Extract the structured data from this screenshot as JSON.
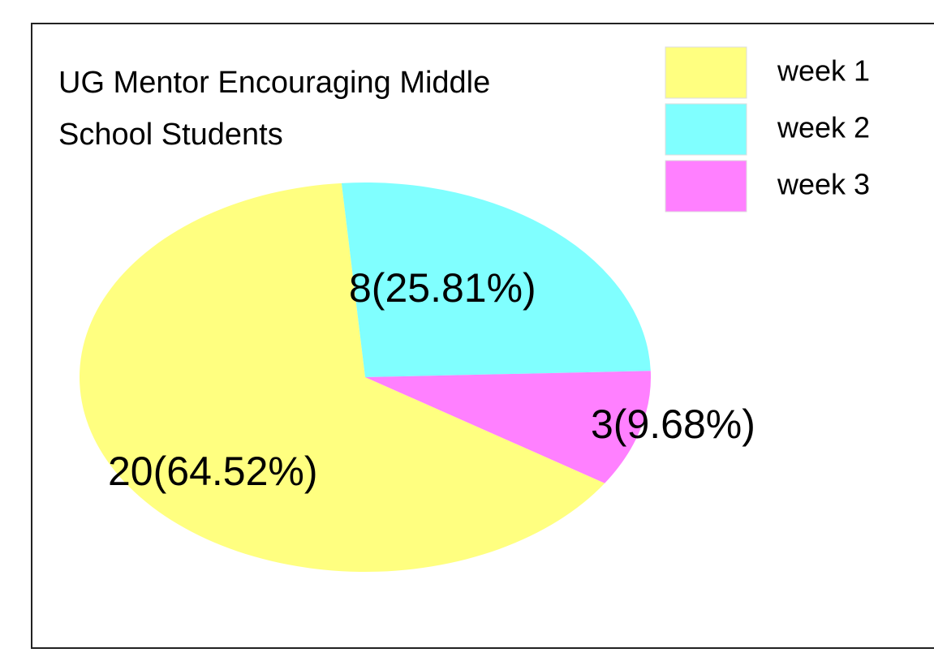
{
  "chart_data": {
    "type": "pie",
    "title": "UG Mentor Encouraging Middle\nSchool Students",
    "categories": [
      "week 1",
      "week 2",
      "week 3"
    ],
    "values": [
      20,
      8,
      3
    ],
    "value_labels": [
      "20(64.52%)",
      "8(25.81%)",
      "3(9.68%)"
    ],
    "colors": [
      "#ffff80",
      "#80ffff",
      "#ff80ff"
    ],
    "legend": "top-right"
  }
}
